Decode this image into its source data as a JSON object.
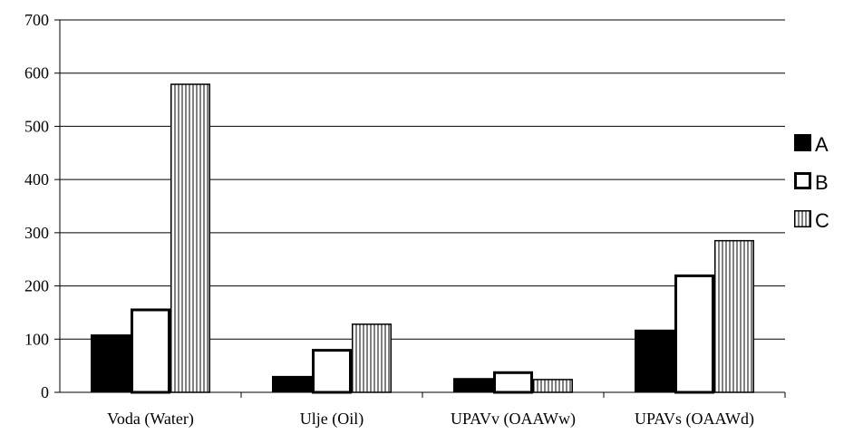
{
  "chart_data": {
    "type": "bar",
    "title": "",
    "xlabel": "",
    "ylabel": "",
    "categories": [
      "Voda (Water)",
      "Ulje (Oil)",
      "UPAVv (OAAWw)",
      "UPAVs (OAAWd)"
    ],
    "series": [
      {
        "name": "A",
        "values": [
          108,
          30,
          26,
          117
        ],
        "fill": "solid-black"
      },
      {
        "name": "B",
        "values": [
          155,
          79,
          37,
          219
        ],
        "fill": "white-outline"
      },
      {
        "name": "C",
        "values": [
          579,
          128,
          24,
          285
        ],
        "fill": "vertical-hatch"
      }
    ],
    "ylim": [
      0,
      700
    ],
    "yticks": [
      "0",
      "100",
      "200",
      "300",
      "400",
      "500",
      "600",
      "700"
    ],
    "grid": true,
    "legend_position": "right"
  },
  "colors": {
    "bar_stroke": "#000000",
    "grid": "#000000",
    "background": "#ffffff"
  }
}
